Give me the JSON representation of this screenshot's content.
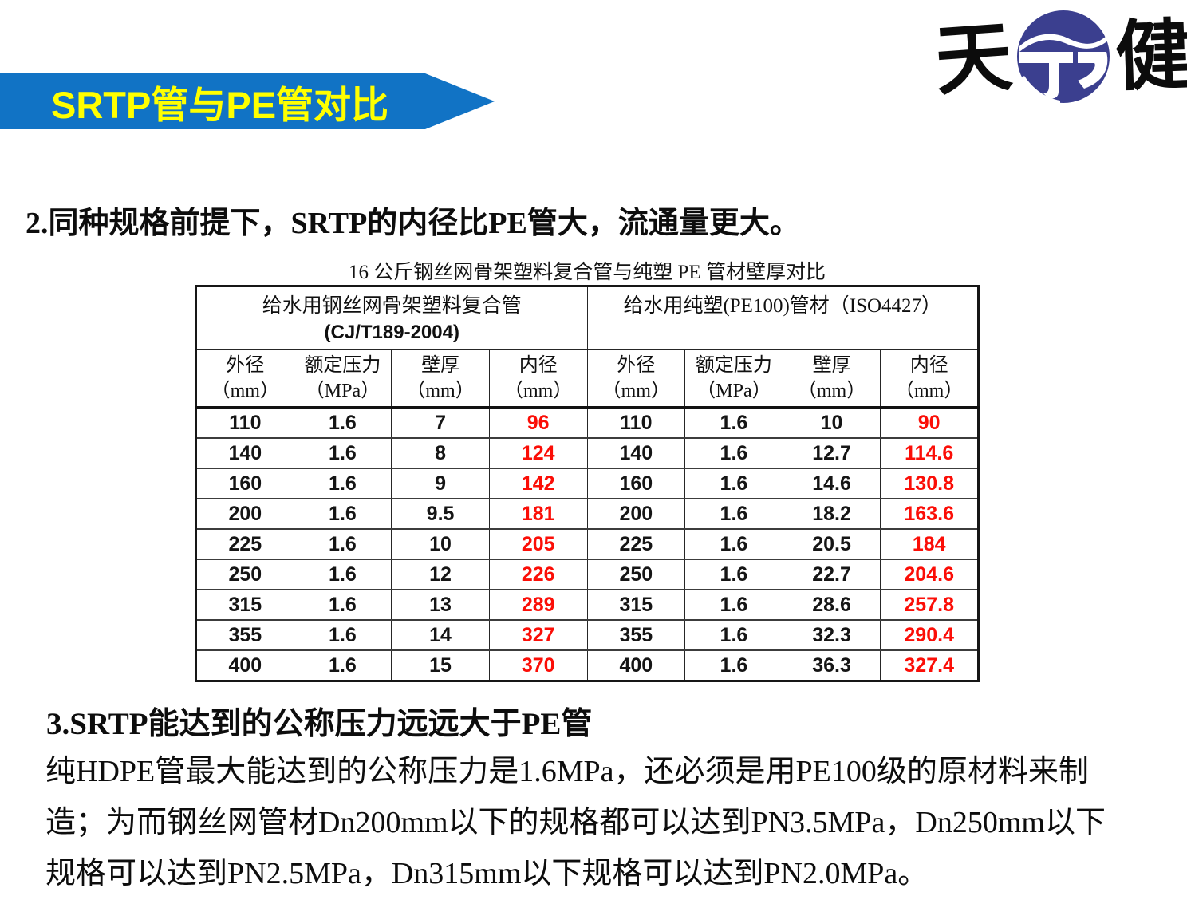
{
  "banner": {
    "title": "SRTP管与PE管对比",
    "bg_color": "#1173C5",
    "text_color": "#FFFF00"
  },
  "logo": {
    "left_char": "天",
    "right_char": "健",
    "circle_color": "#3B3F8F"
  },
  "intro": {
    "text": "2.同种规格前提下，SRTP的内径比PE管大，流通量更大。"
  },
  "table": {
    "title": "16 公斤钢丝网骨架塑料复合管与纯塑 PE 管材壁厚对比",
    "groups": [
      {
        "line1": "给水用钢丝网骨架塑料复合管",
        "line2": "(CJ/T189-2004)"
      },
      {
        "line1": "给水用纯塑(PE100)管材（ISO4427）",
        "line2": ""
      }
    ],
    "columns": [
      {
        "name": "外径",
        "unit": "（mm）"
      },
      {
        "name": "额定压力",
        "unit": "（MPa）"
      },
      {
        "name": "壁厚",
        "unit": "（mm）"
      },
      {
        "name": "内径",
        "unit": "（mm）"
      },
      {
        "name": "外径",
        "unit": "（mm）"
      },
      {
        "name": "额定压力",
        "unit": "（MPa）"
      },
      {
        "name": "壁厚",
        "unit": "（mm）"
      },
      {
        "name": "内径",
        "unit": "（mm）"
      }
    ],
    "highlight_columns": [
      3,
      7
    ],
    "highlight_color": "#FB0E07",
    "rows": [
      [
        "110",
        "1.6",
        "7",
        "96",
        "110",
        "1.6",
        "10",
        "90"
      ],
      [
        "140",
        "1.6",
        "8",
        "124",
        "140",
        "1.6",
        "12.7",
        "114.6"
      ],
      [
        "160",
        "1.6",
        "9",
        "142",
        "160",
        "1.6",
        "14.6",
        "130.8"
      ],
      [
        "200",
        "1.6",
        "9.5",
        "181",
        "200",
        "1.6",
        "18.2",
        "163.6"
      ],
      [
        "225",
        "1.6",
        "10",
        "205",
        "225",
        "1.6",
        "20.5",
        "184"
      ],
      [
        "250",
        "1.6",
        "12",
        "226",
        "250",
        "1.6",
        "22.7",
        "204.6"
      ],
      [
        "315",
        "1.6",
        "13",
        "289",
        "315",
        "1.6",
        "28.6",
        "257.8"
      ],
      [
        "355",
        "1.6",
        "14",
        "327",
        "355",
        "1.6",
        "32.3",
        "290.4"
      ],
      [
        "400",
        "1.6",
        "15",
        "370",
        "400",
        "1.6",
        "36.3",
        "327.4"
      ]
    ]
  },
  "section3": {
    "heading": "3.SRTP能达到的公称压力远远大于PE管",
    "lines": [
      "纯HDPE管最大能达到的公称压力是1.6MPa，还必须是用PE100级的原材料来制",
      "造；为而钢丝网管材Dn200mm以下的规格都可以达到PN3.5MPa，Dn250mm以下",
      "规格可以达到PN2.5MPa，Dn315mm以下规格可以达到PN2.0MPa。"
    ]
  }
}
